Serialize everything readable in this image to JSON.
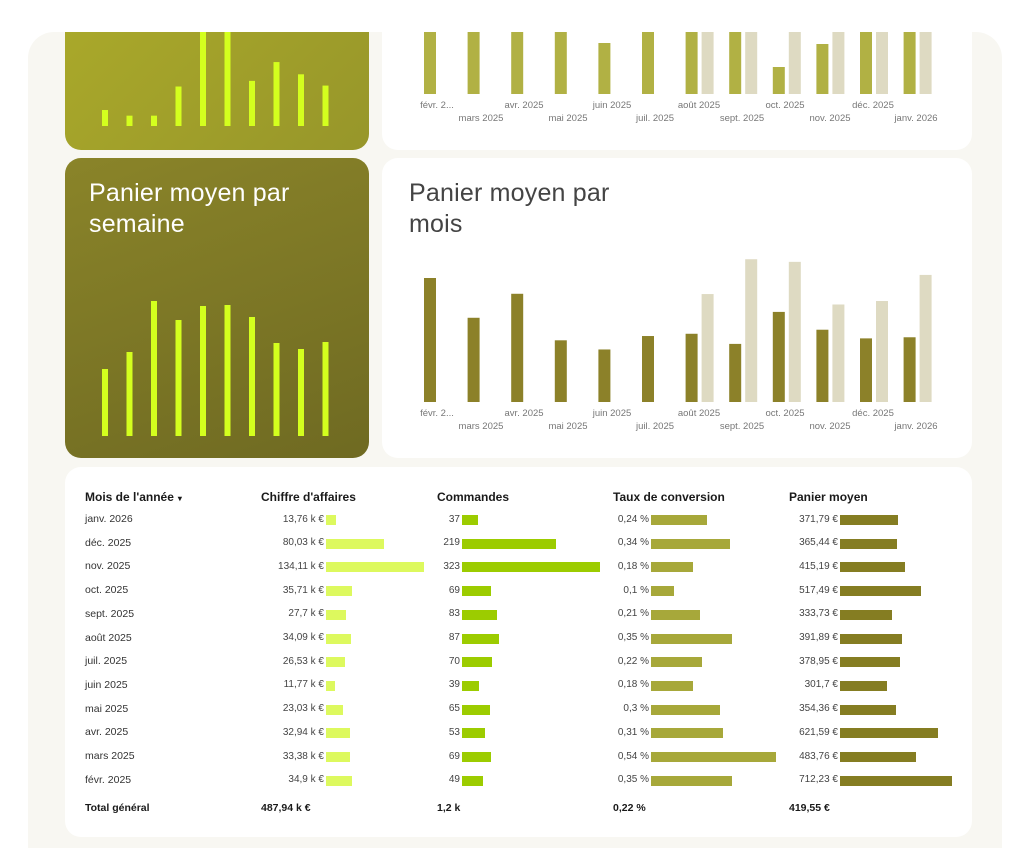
{
  "colors": {
    "lime": "#d4ff1e",
    "olive_dark": "#8c8129",
    "olive_mid": "#b1b144",
    "olive_pale": "#dedac2",
    "bar_revenue": "#ddf95e",
    "bar_orders": "#9ccc00",
    "bar_conversion": "#a7a83a",
    "bar_basket": "#857d22"
  },
  "top_left_chart": {
    "values": [
      17,
      11,
      11,
      42,
      100,
      100,
      48,
      68,
      55,
      43
    ]
  },
  "top_right_chart": {
    "x_labels_top": [
      "févr. 2...",
      "avr. 2025",
      "juin 2025",
      "août 2025",
      "oct. 2025",
      "déc. 2025"
    ],
    "x_labels_bottom": [
      "mars 2025",
      "mai 2025",
      "juil. 2025",
      "sept. 2025",
      "nov. 2025",
      "janv. 2026"
    ]
  },
  "weekly_card": {
    "title": "Panier moyen par\nsemaine",
    "chart_data": {
      "type": "bar",
      "values": [
        67,
        84,
        135,
        116,
        130,
        131,
        119,
        93,
        87,
        94
      ]
    }
  },
  "monthly_card": {
    "title": "Panier moyen par\nmois",
    "chart_data": {
      "type": "bar",
      "categories": [
        "févr. 2025",
        "mars 2025",
        "avr. 2025",
        "mai 2025",
        "juin 2025",
        "juil. 2025",
        "août 2025",
        "sept. 2025",
        "oct. 2025",
        "nov. 2025",
        "déc. 2025",
        "janv. 2026"
      ],
      "series": [
        {
          "values": [
            712.23,
            483.76,
            621.59,
            354.36,
            301.7,
            378.95,
            391.89,
            333.73,
            517.49,
            415.19,
            365.44,
            371.79
          ]
        },
        {
          "values": [
            null,
            null,
            null,
            null,
            null,
            null,
            620,
            820,
            805,
            560,
            580,
            730
          ]
        }
      ],
      "x_labels_top": [
        "févr. 2...",
        "avr. 2025",
        "juin 2025",
        "août 2025",
        "oct. 2025",
        "déc. 2025"
      ],
      "x_labels_bottom": [
        "mars 2025",
        "mai 2025",
        "juil. 2025",
        "sept. 2025",
        "nov. 2025",
        "janv. 2026"
      ]
    }
  },
  "table": {
    "headers": {
      "month": "Mois de l'année",
      "sort_icon": "▾",
      "revenue": "Chiffre d'affaires",
      "orders": "Commandes",
      "conversion": "Taux de conversion",
      "basket": "Panier moyen"
    },
    "chart_data": {
      "type": "table",
      "rows": [
        {
          "month": "janv. 2026",
          "revenue": "13,76 k €",
          "revenue_v": 13.76,
          "orders": "37",
          "orders_v": 37,
          "conversion": "0,24 %",
          "conversion_v": 0.24,
          "basket": "371,79 €",
          "basket_v": 371.79
        },
        {
          "month": "déc. 2025",
          "revenue": "80,03 k €",
          "revenue_v": 80.03,
          "orders": "219",
          "orders_v": 219,
          "conversion": "0,34 %",
          "conversion_v": 0.34,
          "basket": "365,44 €",
          "basket_v": 365.44
        },
        {
          "month": "nov. 2025",
          "revenue": "134,11 k €",
          "revenue_v": 134.11,
          "orders": "323",
          "orders_v": 323,
          "conversion": "0,18 %",
          "conversion_v": 0.18,
          "basket": "415,19 €",
          "basket_v": 415.19
        },
        {
          "month": "oct. 2025",
          "revenue": "35,71 k €",
          "revenue_v": 35.71,
          "orders": "69",
          "orders_v": 69,
          "conversion": "0,1 %",
          "conversion_v": 0.1,
          "basket": "517,49 €",
          "basket_v": 517.49
        },
        {
          "month": "sept. 2025",
          "revenue": "27,7 k €",
          "revenue_v": 27.7,
          "orders": "83",
          "orders_v": 83,
          "conversion": "0,21 %",
          "conversion_v": 0.21,
          "basket": "333,73 €",
          "basket_v": 333.73
        },
        {
          "month": "août 2025",
          "revenue": "34,09 k €",
          "revenue_v": 34.09,
          "orders": "87",
          "orders_v": 87,
          "conversion": "0,35 %",
          "conversion_v": 0.35,
          "basket": "391,89 €",
          "basket_v": 391.89
        },
        {
          "month": "juil. 2025",
          "revenue": "26,53 k €",
          "revenue_v": 26.53,
          "orders": "70",
          "orders_v": 70,
          "conversion": "0,22 %",
          "conversion_v": 0.22,
          "basket": "378,95 €",
          "basket_v": 378.95
        },
        {
          "month": "juin 2025",
          "revenue": "11,77 k €",
          "revenue_v": 11.77,
          "orders": "39",
          "orders_v": 39,
          "conversion": "0,18 %",
          "conversion_v": 0.18,
          "basket": "301,7 €",
          "basket_v": 301.7
        },
        {
          "month": "mai 2025",
          "revenue": "23,03 k €",
          "revenue_v": 23.03,
          "orders": "65",
          "orders_v": 65,
          "conversion": "0,3 %",
          "conversion_v": 0.3,
          "basket": "354,36 €",
          "basket_v": 354.36
        },
        {
          "month": "avr. 2025",
          "revenue": "32,94 k €",
          "revenue_v": 32.94,
          "orders": "53",
          "orders_v": 53,
          "conversion": "0,31 %",
          "conversion_v": 0.31,
          "basket": "621,59 €",
          "basket_v": 621.59
        },
        {
          "month": "mars 2025",
          "revenue": "33,38 k €",
          "revenue_v": 33.38,
          "orders": "69",
          "orders_v": 69,
          "conversion": "0,54 %",
          "conversion_v": 0.54,
          "basket": "483,76 €",
          "basket_v": 483.76
        },
        {
          "month": "févr. 2025",
          "revenue": "34,9 k €",
          "revenue_v": 34.9,
          "orders": "49",
          "orders_v": 49,
          "conversion": "0,35 %",
          "conversion_v": 0.35,
          "basket": "712,23 €",
          "basket_v": 712.23
        }
      ]
    },
    "totals": {
      "label": "Total général",
      "revenue": "487,94 k €",
      "orders": "1,2 k",
      "conversion": "0,22 %",
      "basket": "419,55 €"
    }
  }
}
